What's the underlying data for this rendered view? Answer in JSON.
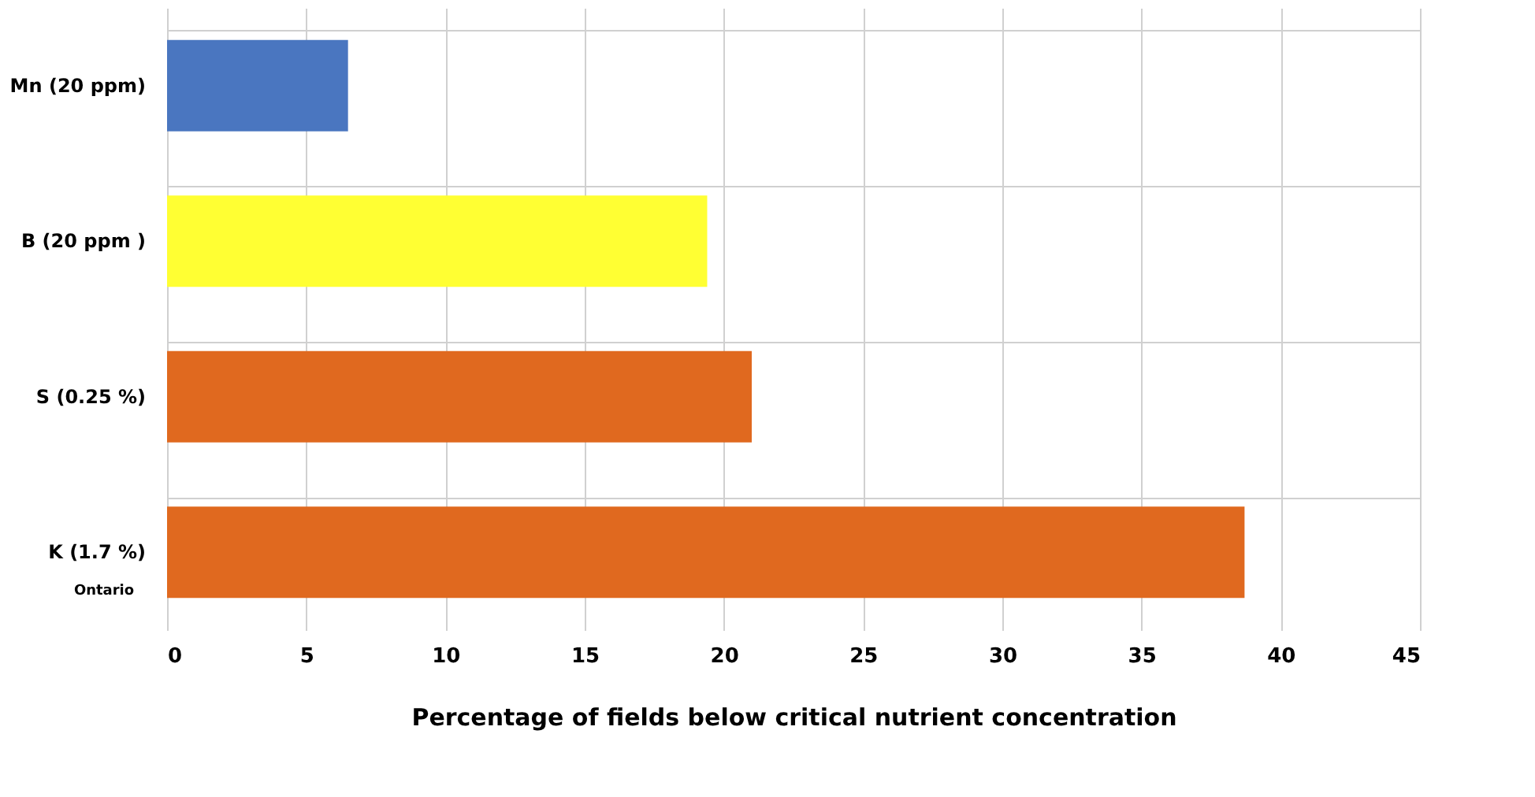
{
  "chart_data": {
    "type": "bar",
    "orientation": "horizontal",
    "xlabel": "Percentage of fields below critical nutrient concentration",
    "categories": [
      "Mn (20 ppm)",
      "B (20 ppm )",
      "S (0.25 %)",
      "K (1.7 %)"
    ],
    "values": [
      6.5,
      19.4,
      21.0,
      38.7
    ],
    "colors": [
      "#4a76c0",
      "#ffff33",
      "#e0691f",
      "#e0691f"
    ],
    "xlim": [
      0,
      45
    ],
    "xticks": [
      0,
      5,
      10,
      15,
      20,
      25,
      30,
      35,
      40,
      45
    ],
    "grid": true,
    "legend": false,
    "annotations": [
      "Ontario"
    ]
  }
}
